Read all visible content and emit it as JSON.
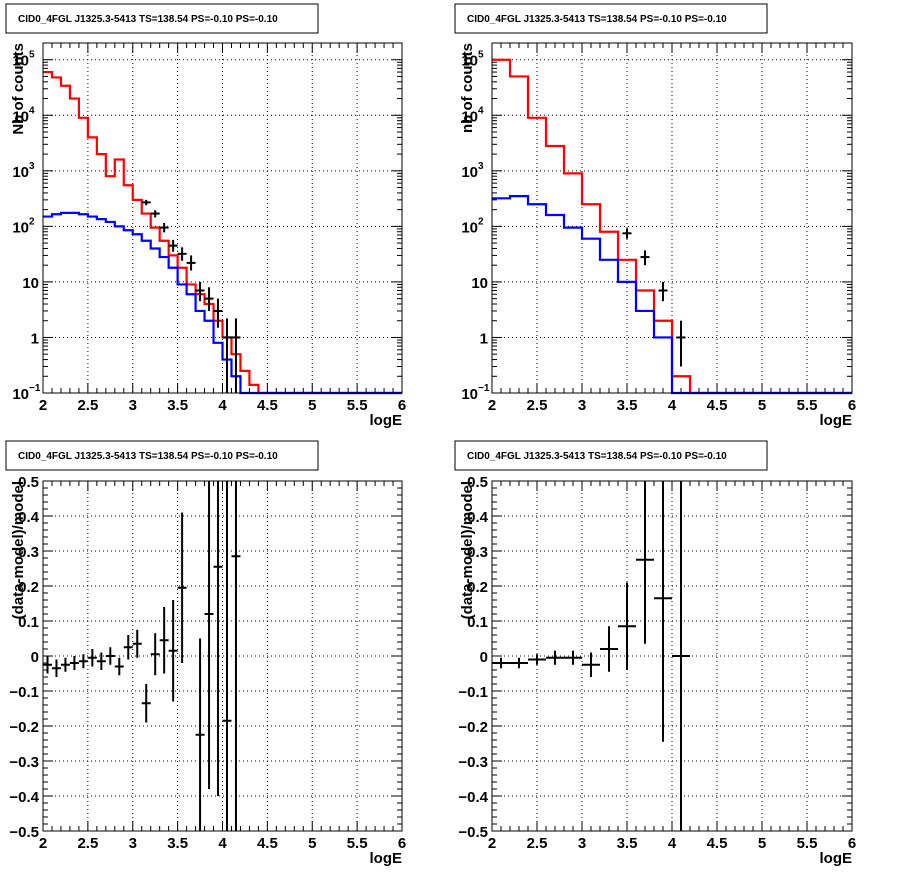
{
  "chart_data": [
    {
      "id": "p1",
      "type": "step-histogram",
      "title": "CID0_4FGL J1325.3-5413 TS=138.54 PS=-0.10 PS=-0.10",
      "xlabel": "logE",
      "ylabel": "Nb of counts",
      "xlim": [
        2,
        6
      ],
      "ylim": [
        0.1,
        200000
      ],
      "ylog": true,
      "grid": true,
      "xticks": [
        "2",
        "2.5",
        "3",
        "3.5",
        "4",
        "4.5",
        "5",
        "5.5",
        "6"
      ],
      "yticks": [
        {
          "v": 0.1,
          "label": "10",
          "sup": "−1"
        },
        {
          "v": 1,
          "label": "1",
          "sup": ""
        },
        {
          "v": 10,
          "label": "10",
          "sup": ""
        },
        {
          "v": 100,
          "label": "10",
          "sup": "2"
        },
        {
          "v": 1000,
          "label": "10",
          "sup": "3"
        },
        {
          "v": 10000,
          "label": "10",
          "sup": "4"
        },
        {
          "v": 100000,
          "label": "10",
          "sup": "5"
        }
      ],
      "bin_edges_start": 2,
      "bin_width": 0.1,
      "series": [
        {
          "role": "model-total",
          "color": "#ff0000",
          "values": [
            60000,
            48000,
            34000,
            20000,
            9000,
            4000,
            2000,
            800,
            1600,
            550,
            300,
            170,
            95,
            55,
            30,
            18,
            9,
            6,
            4,
            2,
            1,
            0.5,
            0.25,
            0.14,
            0.1,
            0.1,
            0.1,
            0.1,
            0.1,
            0.1,
            0.1,
            0.1,
            0.1,
            0.1,
            0.1,
            0.1,
            0.1,
            0.1,
            0.1,
            0.1
          ]
        },
        {
          "role": "model-component",
          "color": "#0000ff",
          "values": [
            150,
            165,
            175,
            175,
            165,
            150,
            135,
            120,
            100,
            85,
            72,
            55,
            40,
            28,
            18,
            9,
            6,
            3,
            2,
            0.8,
            0.4,
            0.2,
            0.1,
            0.1,
            0.1,
            0.1,
            0.1,
            0.1,
            0.1,
            0.1,
            0.1,
            0.1,
            0.1,
            0.1,
            0.1,
            0.1,
            0.1,
            0.1,
            0.1,
            0.1
          ]
        }
      ],
      "points": [
        {
          "x": 3.15,
          "y": 270,
          "lo": 240,
          "hi": 300
        },
        {
          "x": 3.25,
          "y": 170,
          "lo": 145,
          "hi": 195
        },
        {
          "x": 3.35,
          "y": 95,
          "lo": 78,
          "hi": 115
        },
        {
          "x": 3.45,
          "y": 45,
          "lo": 35,
          "hi": 57
        },
        {
          "x": 3.55,
          "y": 32,
          "lo": 24,
          "hi": 42
        },
        {
          "x": 3.65,
          "y": 22,
          "lo": 16,
          "hi": 30
        },
        {
          "x": 3.75,
          "y": 7,
          "lo": 4.5,
          "hi": 10
        },
        {
          "x": 3.85,
          "y": 5,
          "lo": 3,
          "hi": 8
        },
        {
          "x": 3.95,
          "y": 3,
          "lo": 1.5,
          "hi": 5
        },
        {
          "x": 4.05,
          "y": 1,
          "lo": 0.1,
          "hi": 2.2
        },
        {
          "x": 4.15,
          "y": 1,
          "lo": 0.1,
          "hi": 2.2
        }
      ]
    },
    {
      "id": "p2",
      "type": "step-histogram",
      "title": "CID0_4FGL J1325.3-5413 TS=138.54 PS=-0.10 PS=-0.10",
      "xlabel": "logE",
      "ylabel": "nb of counts",
      "xlim": [
        2,
        6
      ],
      "ylim": [
        0.1,
        200000
      ],
      "ylog": true,
      "grid": true,
      "xticks": [
        "2",
        "2.5",
        "3",
        "3.5",
        "4",
        "4.5",
        "5",
        "5.5",
        "6"
      ],
      "yticks": [
        {
          "v": 0.1,
          "label": "10",
          "sup": "−1"
        },
        {
          "v": 1,
          "label": "1",
          "sup": ""
        },
        {
          "v": 10,
          "label": "10",
          "sup": ""
        },
        {
          "v": 100,
          "label": "10",
          "sup": "2"
        },
        {
          "v": 1000,
          "label": "10",
          "sup": "3"
        },
        {
          "v": 10000,
          "label": "10",
          "sup": "4"
        },
        {
          "v": 100000,
          "label": "10",
          "sup": "5"
        }
      ],
      "bin_edges_start": 2,
      "bin_width": 0.2,
      "series": [
        {
          "role": "model-total",
          "color": "#ff0000",
          "values": [
            100000,
            50000,
            9000,
            2800,
            900,
            250,
            80,
            25,
            7,
            2,
            0.2,
            0.1,
            0.1,
            0.1,
            0.1,
            0.1,
            0.1,
            0.1,
            0.1,
            0.1
          ]
        },
        {
          "role": "model-component",
          "color": "#0000ff",
          "values": [
            320,
            350,
            250,
            160,
            95,
            60,
            25,
            10,
            3,
            1,
            0.1,
            0.1,
            0.1,
            0.1,
            0.1,
            0.1,
            0.1,
            0.1,
            0.1,
            0.1
          ]
        }
      ],
      "points": [
        {
          "x": 3.5,
          "y": 75,
          "lo": 60,
          "hi": 92
        },
        {
          "x": 3.7,
          "y": 28,
          "lo": 20,
          "hi": 37
        },
        {
          "x": 3.9,
          "y": 7,
          "lo": 4.5,
          "hi": 10
        },
        {
          "x": 4.1,
          "y": 1,
          "lo": 0.3,
          "hi": 2
        }
      ]
    },
    {
      "id": "p3",
      "type": "scatter-errorbars",
      "title": "CID0_4FGL J1325.3-5413 TS=138.54 PS=-0.10 PS=-0.10",
      "xlabel": "logE",
      "ylabel": "(data-model)/model",
      "xlim": [
        2,
        6
      ],
      "ylim": [
        -0.5,
        0.5
      ],
      "ylog": false,
      "grid": true,
      "xticks": [
        "2",
        "2.5",
        "3",
        "3.5",
        "4",
        "4.5",
        "5",
        "5.5",
        "6"
      ],
      "yticks": [
        {
          "v": -0.5,
          "label": "−0.5",
          "sup": ""
        },
        {
          "v": -0.4,
          "label": "−0.4",
          "sup": ""
        },
        {
          "v": -0.3,
          "label": "−0.3",
          "sup": ""
        },
        {
          "v": -0.2,
          "label": "−0.2",
          "sup": ""
        },
        {
          "v": -0.1,
          "label": "−0.1",
          "sup": ""
        },
        {
          "v": 0,
          "label": "0",
          "sup": ""
        },
        {
          "v": 0.1,
          "label": "0.1",
          "sup": ""
        },
        {
          "v": 0.2,
          "label": "0.2",
          "sup": ""
        },
        {
          "v": 0.3,
          "label": "0.3",
          "sup": ""
        },
        {
          "v": 0.4,
          "label": "0.4",
          "sup": ""
        },
        {
          "v": 0.5,
          "label": "0.5",
          "sup": ""
        }
      ],
      "xerr": 0.05,
      "points": [
        {
          "x": 2.05,
          "y": -0.025,
          "lo": -0.05,
          "hi": 0.0
        },
        {
          "x": 2.15,
          "y": -0.035,
          "lo": -0.06,
          "hi": -0.01
        },
        {
          "x": 2.25,
          "y": -0.025,
          "lo": -0.045,
          "hi": -0.005
        },
        {
          "x": 2.35,
          "y": -0.02,
          "lo": -0.04,
          "hi": 0.0
        },
        {
          "x": 2.45,
          "y": -0.015,
          "lo": -0.035,
          "hi": 0.005
        },
        {
          "x": 2.55,
          "y": -0.005,
          "lo": -0.03,
          "hi": 0.02
        },
        {
          "x": 2.65,
          "y": -0.015,
          "lo": -0.04,
          "hi": 0.01
        },
        {
          "x": 2.75,
          "y": 0.0,
          "lo": -0.025,
          "hi": 0.025
        },
        {
          "x": 2.85,
          "y": -0.03,
          "lo": -0.055,
          "hi": -0.005
        },
        {
          "x": 2.95,
          "y": 0.025,
          "lo": -0.01,
          "hi": 0.06
        },
        {
          "x": 3.05,
          "y": 0.035,
          "lo": -0.005,
          "hi": 0.075
        },
        {
          "x": 3.15,
          "y": -0.135,
          "lo": -0.19,
          "hi": -0.08
        },
        {
          "x": 3.25,
          "y": 0.005,
          "lo": -0.055,
          "hi": 0.065
        },
        {
          "x": 3.35,
          "y": 0.045,
          "lo": -0.05,
          "hi": 0.14
        },
        {
          "x": 3.45,
          "y": 0.015,
          "lo": -0.13,
          "hi": 0.16
        },
        {
          "x": 3.55,
          "y": 0.195,
          "lo": -0.02,
          "hi": 0.41
        },
        {
          "x": 3.75,
          "y": -0.225,
          "lo": -0.5,
          "hi": 0.05
        },
        {
          "x": 3.85,
          "y": 0.12,
          "lo": -0.38,
          "hi": 0.5
        },
        {
          "x": 3.95,
          "y": 0.255,
          "lo": -0.4,
          "hi": 0.5
        },
        {
          "x": 4.05,
          "y": -0.185,
          "lo": -0.5,
          "hi": 0.5
        },
        {
          "x": 4.15,
          "y": 0.285,
          "lo": -0.5,
          "hi": 0.5
        }
      ]
    },
    {
      "id": "p4",
      "type": "scatter-errorbars",
      "title": "CID0_4FGL J1325.3-5413 TS=138.54 PS=-0.10 PS=-0.10",
      "xlabel": "logE",
      "ylabel": "(data-model)/model",
      "xlim": [
        2,
        6
      ],
      "ylim": [
        -0.5,
        0.5
      ],
      "ylog": false,
      "grid": true,
      "xticks": [
        "2",
        "2.5",
        "3",
        "3.5",
        "4",
        "4.5",
        "5",
        "5.5",
        "6"
      ],
      "yticks": [
        {
          "v": -0.5,
          "label": "−0.5",
          "sup": ""
        },
        {
          "v": -0.4,
          "label": "−0.4",
          "sup": ""
        },
        {
          "v": -0.3,
          "label": "−0.3",
          "sup": ""
        },
        {
          "v": -0.2,
          "label": "−0.2",
          "sup": ""
        },
        {
          "v": -0.1,
          "label": "−0.1",
          "sup": ""
        },
        {
          "v": 0,
          "label": "0",
          "sup": ""
        },
        {
          "v": 0.1,
          "label": "0.1",
          "sup": ""
        },
        {
          "v": 0.2,
          "label": "0.2",
          "sup": ""
        },
        {
          "v": 0.3,
          "label": "0.3",
          "sup": ""
        },
        {
          "v": 0.4,
          "label": "0.4",
          "sup": ""
        },
        {
          "v": 0.5,
          "label": "0.5",
          "sup": ""
        }
      ],
      "xerr": 0.1,
      "points": [
        {
          "x": 2.1,
          "y": -0.02,
          "lo": -0.035,
          "hi": -0.005
        },
        {
          "x": 2.3,
          "y": -0.02,
          "lo": -0.035,
          "hi": -0.005
        },
        {
          "x": 2.5,
          "y": -0.01,
          "lo": -0.025,
          "hi": 0.005
        },
        {
          "x": 2.7,
          "y": -0.005,
          "lo": -0.025,
          "hi": 0.015
        },
        {
          "x": 2.9,
          "y": -0.005,
          "lo": -0.025,
          "hi": 0.015
        },
        {
          "x": 3.1,
          "y": -0.025,
          "lo": -0.06,
          "hi": 0.01
        },
        {
          "x": 3.3,
          "y": 0.02,
          "lo": -0.045,
          "hi": 0.085
        },
        {
          "x": 3.5,
          "y": 0.085,
          "lo": -0.04,
          "hi": 0.21
        },
        {
          "x": 3.7,
          "y": 0.275,
          "lo": 0.035,
          "hi": 0.5
        },
        {
          "x": 3.9,
          "y": 0.165,
          "lo": -0.245,
          "hi": 0.5
        },
        {
          "x": 4.1,
          "y": 0.0,
          "lo": -0.5,
          "hi": 0.5
        }
      ]
    }
  ]
}
